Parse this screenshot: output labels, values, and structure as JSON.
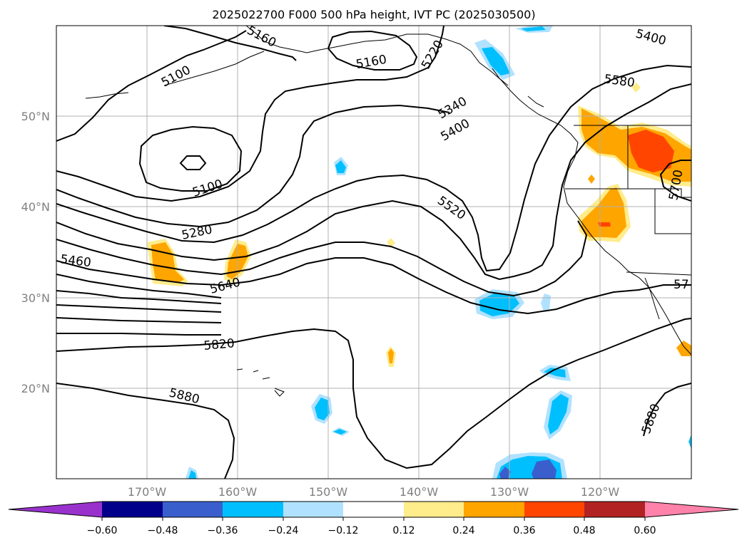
{
  "title": "2025022700 F000 500 hPa height, IVT PC (2025030500)",
  "map": {
    "lat_labels": [
      "50°N",
      "40°N",
      "30°N",
      "20°N"
    ],
    "lon_labels": [
      "170°W",
      "160°W",
      "150°W",
      "140°W",
      "130°W",
      "120°W"
    ],
    "contour_labels": [
      "5100",
      "5160",
      "5220",
      "5340",
      "5400",
      "5400",
      "5580",
      "5100",
      "5280",
      "5460",
      "5640",
      "5520",
      "5820",
      "5880",
      "5880",
      "5700",
      "57",
      "5160"
    ],
    "line_color": "#000000",
    "grid_color": "#b0b0b0"
  },
  "colorbar": {
    "ticks": [
      "−0.60",
      "−0.48",
      "−0.36",
      "−0.24",
      "−0.12",
      "0.12",
      "0.24",
      "0.36",
      "0.48",
      "0.60"
    ],
    "colors": [
      "#9932cc",
      "#00008b",
      "#3a5fcd",
      "#00bfff",
      "#b0e2ff",
      "#ffffff",
      "#ffec8b",
      "#ffa500",
      "#ff4500",
      "#b22222",
      "#ff82ab"
    ]
  }
}
